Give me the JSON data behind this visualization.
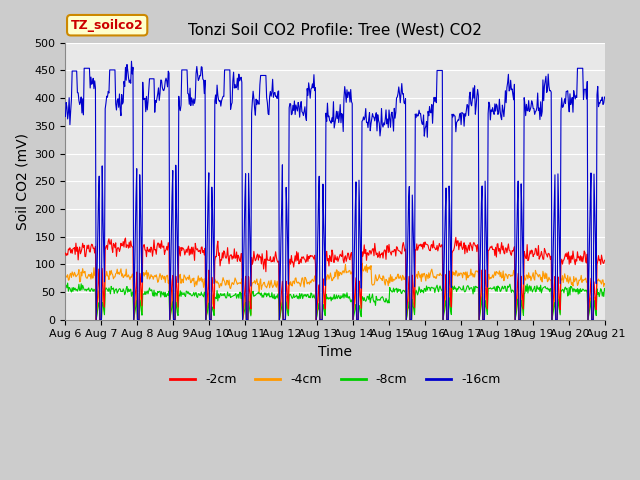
{
  "title": "Tonzi Soil CO2 Profile: Tree (West) CO2",
  "ylabel": "Soil CO2 (mV)",
  "xlabel": "Time",
  "watermark": "TZ_soilco2",
  "ylim": [
    0,
    500
  ],
  "x_tick_labels": [
    "Aug 6",
    "Aug 7",
    "Aug 8",
    "Aug 9",
    "Aug 10",
    "Aug 11",
    "Aug 12",
    "Aug 13",
    "Aug 14",
    "Aug 15",
    "Aug 16",
    "Aug 17",
    "Aug 18",
    "Aug 19",
    "Aug 20",
    "Aug 21"
  ],
  "legend_entries": [
    "-2cm",
    "-4cm",
    "-8cm",
    "-16cm"
  ],
  "legend_colors": [
    "#ff0000",
    "#ff9900",
    "#00cc00",
    "#0000cc"
  ],
  "fig_bg_color": "#cccccc",
  "plot_bg_color": "#e8e8e8",
  "grid_color": "#ffffff",
  "title_fontsize": 11,
  "label_fontsize": 10,
  "tick_fontsize": 8,
  "watermark_bg": "#ffffcc",
  "watermark_border": "#cc8800",
  "drop_positions": [
    0.98,
    2.02,
    3.03,
    4.03,
    5.05,
    6.08,
    7.1,
    8.12,
    9.6,
    10.62,
    11.62,
    12.62,
    13.65,
    14.65
  ],
  "blue_base": 380,
  "red_base": 120,
  "orange_base": 72,
  "green_base": 50
}
